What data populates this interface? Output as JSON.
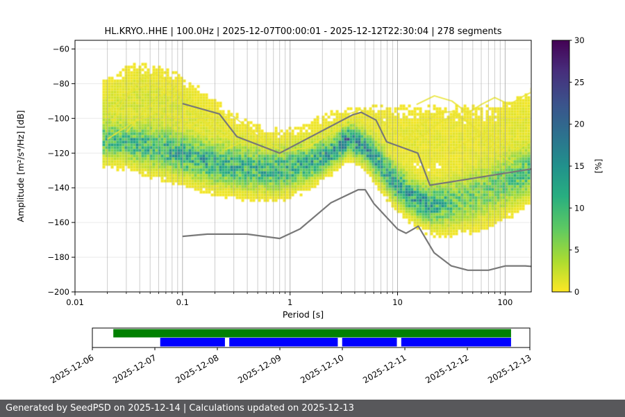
{
  "title": "HL.KRYO..HHE | 100.0Hz | 2025-12-07T00:00:01 - 2025-12-12T22:30:04 | 278 segments",
  "footer": {
    "text": "Generated by SeedPSD on 2025-12-14 | Calculations updated on 2025-12-13"
  },
  "chart_data": {
    "type": "heatmap",
    "title": "HL.KRYO..HHE | 100.0Hz | 2025-12-07T00:00:01 - 2025-12-12T22:30:04 | 278 segments",
    "xlabel": "Period [s]",
    "ylabel": "Amplitude [m²/s⁴/Hz] [dB]",
    "xscale": "log",
    "xlim": [
      0.01,
      175
    ],
    "ylim": [
      -200,
      -55
    ],
    "x_ticks": [
      0.01,
      0.1,
      1,
      10,
      100
    ],
    "x_tick_labels": [
      "0.01",
      "0.1",
      "1",
      "10",
      "100"
    ],
    "y_ticks": [
      -60,
      -80,
      -100,
      -120,
      -140,
      -160,
      -180,
      -200
    ],
    "grid": true,
    "colorbar": {
      "label": "[%]",
      "min": 0,
      "max": 30,
      "ticks": [
        0,
        5,
        10,
        15,
        20,
        25,
        30
      ],
      "colormap": "viridis_r",
      "stops": [
        [
          0,
          "#fde725"
        ],
        [
          0.12,
          "#addc30"
        ],
        [
          0.25,
          "#5ec962"
        ],
        [
          0.38,
          "#28ae80"
        ],
        [
          0.5,
          "#21918c"
        ],
        [
          0.62,
          "#2c728e"
        ],
        [
          0.75,
          "#3b528b"
        ],
        [
          0.88,
          "#472d7b"
        ],
        [
          1,
          "#440154"
        ]
      ]
    },
    "ppsd_histogram": {
      "p_range": [
        0.018,
        175
      ],
      "v_range": [
        -170,
        -68
      ],
      "main_band": [
        [
          0.018,
          -113,
          6,
          9
        ],
        [
          0.03,
          -114,
          6,
          10
        ],
        [
          0.05,
          -116,
          7,
          10
        ],
        [
          0.1,
          -121,
          7,
          11
        ],
        [
          0.2,
          -126,
          7,
          11
        ],
        [
          0.4,
          -129,
          7,
          10
        ],
        [
          0.8,
          -130,
          7,
          10
        ],
        [
          1.5,
          -126,
          6,
          11
        ],
        [
          2.5,
          -119,
          5,
          13
        ],
        [
          3.5,
          -112,
          4.5,
          15
        ],
        [
          5,
          -117,
          5,
          13
        ],
        [
          7,
          -127,
          6,
          11
        ],
        [
          10,
          -139,
          6,
          12
        ],
        [
          15,
          -147,
          6,
          13
        ],
        [
          22,
          -150,
          7,
          11
        ],
        [
          35,
          -148,
          8,
          7
        ],
        [
          60,
          -143,
          9,
          6
        ],
        [
          100,
          -137,
          9,
          7
        ],
        [
          180,
          -129,
          8,
          9
        ]
      ],
      "upper_band": [
        [
          0.018,
          -95,
          10,
          1.6
        ],
        [
          0.04,
          -88,
          11,
          1.8
        ],
        [
          0.08,
          -92,
          11,
          1.6
        ],
        [
          0.15,
          -100,
          10,
          1.3
        ],
        [
          0.3,
          -110,
          8,
          1.0
        ],
        [
          0.6,
          -116,
          7,
          0.7
        ],
        [
          1.2,
          -114,
          7,
          0.7
        ],
        [
          2.5,
          -106,
          7,
          0.9
        ],
        [
          5,
          -106,
          9,
          1.0
        ],
        [
          10,
          -112,
          12,
          1.1
        ],
        [
          20,
          -113,
          13,
          1.1
        ],
        [
          40,
          -113,
          13,
          1.0
        ],
        [
          80,
          -112,
          12,
          1.0
        ],
        [
          180,
          -100,
          11,
          1.2
        ]
      ]
    },
    "noise_models": {
      "high": [
        [
          0.1,
          -91.5
        ],
        [
          0.22,
          -97.4
        ],
        [
          0.32,
          -110.5
        ],
        [
          0.8,
          -120
        ],
        [
          3.8,
          -98
        ],
        [
          4.6,
          -96.5
        ],
        [
          6.3,
          -101
        ],
        [
          7.9,
          -113.5
        ],
        [
          15.4,
          -120
        ],
        [
          20,
          -138.5
        ],
        [
          175,
          -129.2
        ]
      ],
      "low": [
        [
          0.1,
          -168
        ],
        [
          0.17,
          -166.7
        ],
        [
          0.4,
          -166.7
        ],
        [
          0.8,
          -169.2
        ],
        [
          1.24,
          -163.7
        ],
        [
          2.4,
          -148.6
        ],
        [
          4.3,
          -141.1
        ],
        [
          5,
          -141.1
        ],
        [
          6,
          -149
        ],
        [
          10,
          -163.8
        ],
        [
          12,
          -166.2
        ],
        [
          15.6,
          -162.1
        ],
        [
          21.9,
          -177.5
        ],
        [
          31.6,
          -185
        ],
        [
          45,
          -187.5
        ],
        [
          70,
          -187.5
        ],
        [
          101,
          -185
        ],
        [
          154,
          -185
        ],
        [
          175,
          -185.3
        ]
      ]
    },
    "outlier_traces": [
      [
        [
          0.022,
          -103
        ],
        [
          0.028,
          -90
        ],
        [
          0.04,
          -78
        ],
        [
          0.055,
          -74
        ],
        [
          0.075,
          -79
        ],
        [
          0.1,
          -88
        ],
        [
          0.14,
          -98
        ],
        [
          0.2,
          -107
        ]
      ],
      [
        [
          0.03,
          -108
        ],
        [
          0.045,
          -95
        ],
        [
          0.065,
          -86
        ],
        [
          0.09,
          -84
        ],
        [
          0.13,
          -92
        ],
        [
          0.19,
          -101
        ],
        [
          0.28,
          -110
        ]
      ],
      [
        [
          0.02,
          -97
        ],
        [
          0.03,
          -86
        ],
        [
          0.05,
          -80
        ],
        [
          0.08,
          -86
        ],
        [
          0.12,
          -96
        ],
        [
          0.18,
          -105
        ],
        [
          0.3,
          -113
        ]
      ],
      [
        [
          0.12,
          -104
        ],
        [
          0.2,
          -96
        ],
        [
          0.3,
          -99
        ],
        [
          0.45,
          -108
        ],
        [
          0.7,
          -116
        ]
      ],
      [
        [
          0.25,
          -118
        ],
        [
          0.4,
          -112
        ],
        [
          0.6,
          -114
        ],
        [
          0.9,
          -119
        ],
        [
          1.4,
          -117
        ],
        [
          2.2,
          -110
        ],
        [
          3.2,
          -104
        ],
        [
          4.5,
          -101
        ],
        [
          6,
          -107
        ]
      ],
      [
        [
          3,
          -99
        ],
        [
          4.5,
          -95
        ],
        [
          6.5,
          -99
        ],
        [
          9,
          -107
        ],
        [
          13,
          -113
        ],
        [
          18,
          -109
        ],
        [
          25,
          -102
        ],
        [
          35,
          -98
        ],
        [
          50,
          -104
        ],
        [
          70,
          -112
        ],
        [
          100,
          -119
        ]
      ],
      [
        [
          8,
          -122
        ],
        [
          12,
          -112
        ],
        [
          17,
          -103
        ],
        [
          24,
          -97
        ],
        [
          33,
          -96
        ],
        [
          45,
          -102
        ],
        [
          62,
          -111
        ],
        [
          85,
          -120
        ],
        [
          120,
          -126
        ]
      ],
      [
        [
          15,
          -92
        ],
        [
          22,
          -87
        ],
        [
          32,
          -90
        ],
        [
          45,
          -97
        ],
        [
          60,
          -92
        ],
        [
          80,
          -88
        ],
        [
          110,
          -92
        ],
        [
          150,
          -87
        ],
        [
          175,
          -85
        ]
      ],
      [
        [
          30,
          -120
        ],
        [
          45,
          -113
        ],
        [
          65,
          -108
        ],
        [
          90,
          -112
        ],
        [
          130,
          -118
        ],
        [
          175,
          -113
        ]
      ],
      [
        [
          0.02,
          -112
        ],
        [
          0.035,
          -102
        ],
        [
          0.06,
          -96
        ],
        [
          0.1,
          -102
        ],
        [
          0.16,
          -110
        ]
      ]
    ]
  },
  "timeline": {
    "day_labels": [
      "2025-12-06",
      "2025-12-07",
      "2025-12-08",
      "2025-12-09",
      "2025-12-10",
      "2025-12-11",
      "2025-12-12",
      "2025-12-13"
    ],
    "coverage_color": "#008000",
    "segments_color": "#0000ff",
    "coverage_segments": [
      [
        0.048,
        0.957
      ]
    ],
    "data_segments": [
      [
        0.155,
        0.303
      ],
      [
        0.313,
        0.561
      ],
      [
        0.571,
        0.696
      ],
      [
        0.706,
        0.957
      ]
    ]
  }
}
